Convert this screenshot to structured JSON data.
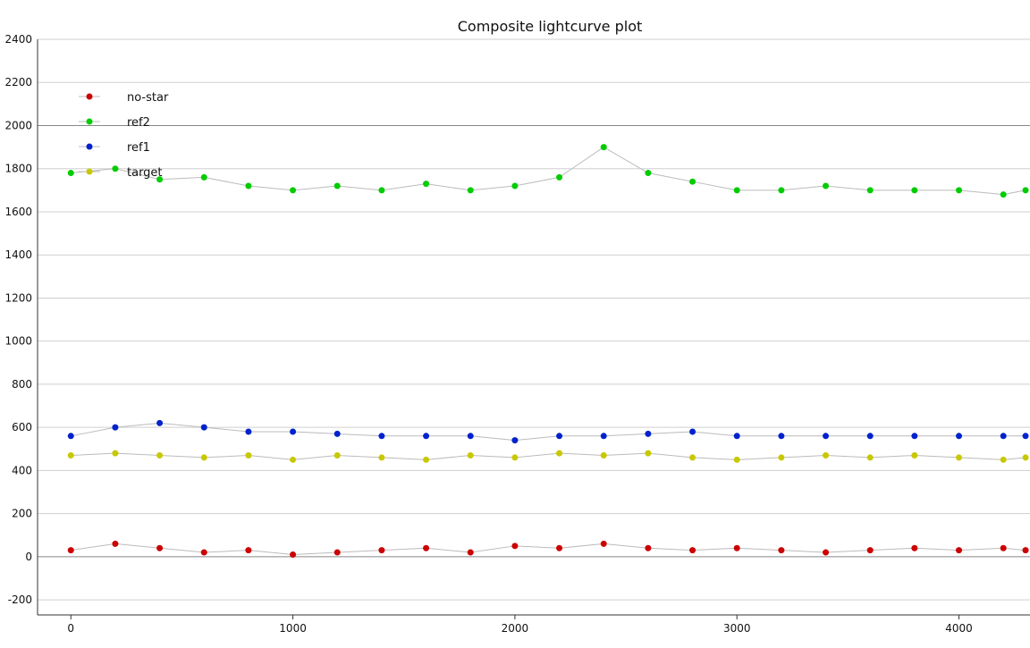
{
  "chart_data": {
    "type": "scatter",
    "title": "Composite lightcurve plot",
    "xlabel": "",
    "ylabel": "",
    "xlim": [
      -150,
      4320
    ],
    "ylim": [
      -270,
      2400
    ],
    "xticks": [
      0,
      1000,
      2000,
      3000,
      4000
    ],
    "yticks": [
      -200,
      0,
      200,
      400,
      600,
      800,
      1000,
      1200,
      1400,
      1600,
      1800,
      2000,
      2200,
      2400
    ],
    "grid": true,
    "legend_position": "top-left",
    "series": [
      {
        "name": "no-star",
        "color": "#cc0000",
        "x": [
          0,
          200,
          400,
          600,
          800,
          1000,
          1200,
          1400,
          1600,
          1800,
          2000,
          2200,
          2400,
          2600,
          2800,
          3000,
          3200,
          3400,
          3600,
          3800,
          4000,
          4200,
          4300
        ],
        "y": [
          30,
          60,
          40,
          20,
          30,
          10,
          20,
          30,
          40,
          20,
          50,
          40,
          60,
          40,
          30,
          40,
          30,
          20,
          30,
          40,
          30,
          40,
          30
        ]
      },
      {
        "name": "ref2",
        "color": "#00cc00",
        "x": [
          0,
          200,
          400,
          600,
          800,
          1000,
          1200,
          1400,
          1600,
          1800,
          2000,
          2200,
          2400,
          2600,
          2800,
          3000,
          3200,
          3400,
          3600,
          3800,
          4000,
          4200,
          4300
        ],
        "y": [
          1780,
          1800,
          1750,
          1760,
          1720,
          1700,
          1720,
          1700,
          1730,
          1700,
          1720,
          1760,
          1900,
          1780,
          1740,
          1700,
          1700,
          1720,
          1700,
          1700,
          1700,
          1680,
          1700
        ]
      },
      {
        "name": "ref1",
        "color": "#0022cc",
        "x": [
          0,
          200,
          400,
          600,
          800,
          1000,
          1200,
          1400,
          1600,
          1800,
          2000,
          2200,
          2400,
          2600,
          2800,
          3000,
          3200,
          3400,
          3600,
          3800,
          4000,
          4200,
          4300
        ],
        "y": [
          560,
          600,
          620,
          600,
          580,
          580,
          570,
          560,
          560,
          560,
          540,
          560,
          560,
          570,
          580,
          560,
          560,
          560,
          560,
          560,
          560,
          560,
          560
        ]
      },
      {
        "name": "target",
        "color": "#c8c800",
        "x": [
          0,
          200,
          400,
          600,
          800,
          1000,
          1200,
          1400,
          1600,
          1800,
          2000,
          2200,
          2400,
          2600,
          2800,
          3000,
          3200,
          3400,
          3600,
          3800,
          4000,
          4200,
          4300
        ],
        "y": [
          470,
          480,
          470,
          460,
          470,
          450,
          470,
          460,
          450,
          470,
          460,
          480,
          470,
          480,
          460,
          450,
          460,
          470,
          460,
          470,
          460,
          450,
          460
        ]
      }
    ]
  }
}
